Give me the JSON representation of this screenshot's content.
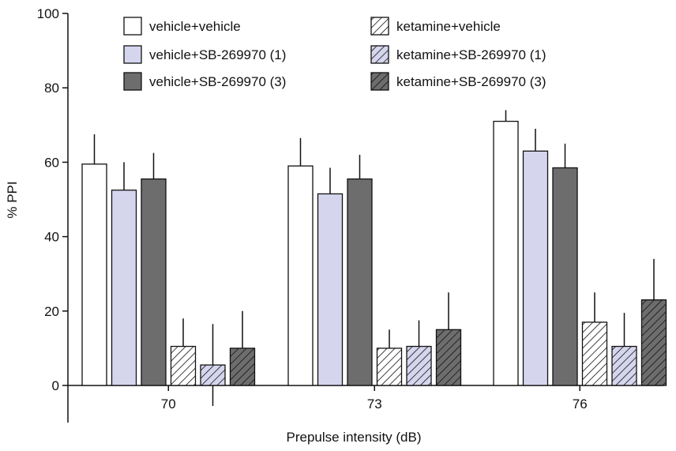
{
  "chart_data": {
    "type": "bar",
    "title": "",
    "xlabel": "Prepulse intensity (dB)",
    "ylabel": "% PPI",
    "ylim": [
      0,
      100
    ],
    "yticks": [
      0,
      20,
      40,
      60,
      80,
      100
    ],
    "categories": [
      "70",
      "73",
      "76"
    ],
    "series": [
      {
        "name": "vehicle+vehicle",
        "values": [
          59.5,
          59.0,
          71.0
        ],
        "errors": [
          8.0,
          7.5,
          3.0
        ],
        "fill": "#ffffff",
        "pattern": "solid"
      },
      {
        "name": "vehicle+SB-269970 (1)",
        "values": [
          52.5,
          51.5,
          63.0
        ],
        "errors": [
          7.5,
          7.0,
          6.0
        ],
        "fill": "#d5d6ee",
        "pattern": "solid"
      },
      {
        "name": "vehicle+SB-269970 (3)",
        "values": [
          55.5,
          55.5,
          58.5
        ],
        "errors": [
          7.0,
          6.5,
          6.5
        ],
        "fill": "#6d6d6d",
        "pattern": "solid"
      },
      {
        "name": "ketamine+vehicle",
        "values": [
          10.5,
          10.0,
          17.0
        ],
        "errors": [
          7.5,
          5.0,
          8.0
        ],
        "fill": "#ffffff",
        "pattern": "hatch"
      },
      {
        "name": "ketamine+SB-269970 (1)",
        "values": [
          5.5,
          10.5,
          10.5
        ],
        "errors": [
          11.0,
          7.0,
          9.0
        ],
        "fill": "#d5d6ee",
        "pattern": "hatch"
      },
      {
        "name": "ketamine+SB-269970 (3)",
        "values": [
          10.0,
          15.0,
          23.0
        ],
        "errors": [
          10.0,
          10.0,
          11.0
        ],
        "fill": "#6d6d6d",
        "pattern": "hatch"
      }
    ],
    "legend_position": "top"
  }
}
